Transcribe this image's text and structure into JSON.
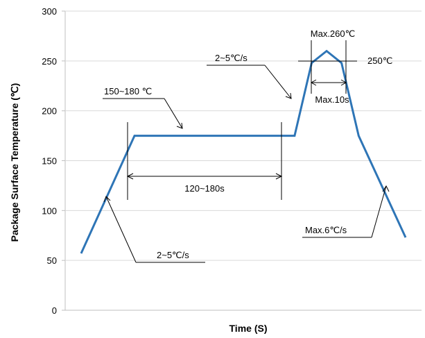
{
  "chart_data": {
    "type": "line",
    "title": "",
    "xlabel": "Time (S)",
    "ylabel": "Package Surface Temperature (℃)",
    "ylim": [
      0,
      300
    ],
    "yticks": [
      "0",
      "50",
      "100",
      "150",
      "200",
      "250",
      "300"
    ],
    "grid": true,
    "legend": "none",
    "series": [
      {
        "x": [
          0,
          25,
          75,
          100,
          108,
          115,
          122,
          130,
          152
        ],
        "y": [
          57,
          175,
          175,
          175,
          248,
          260,
          248,
          175,
          73
        ]
      }
    ],
    "annotations": {
      "preheat_temp": "150~180 ℃",
      "preheat_time": "120~180s",
      "ramp_up_1": "2~5℃/s",
      "ramp_up_2": "2~5℃/s",
      "peak_max": "Max.260℃",
      "peak_level": "250℃",
      "peak_time": "Max.10s",
      "ramp_down": "Max.6℃/s"
    }
  },
  "colors": {
    "line": "#2e75b6",
    "grid": "#d9d9d9",
    "text": "#000000"
  }
}
